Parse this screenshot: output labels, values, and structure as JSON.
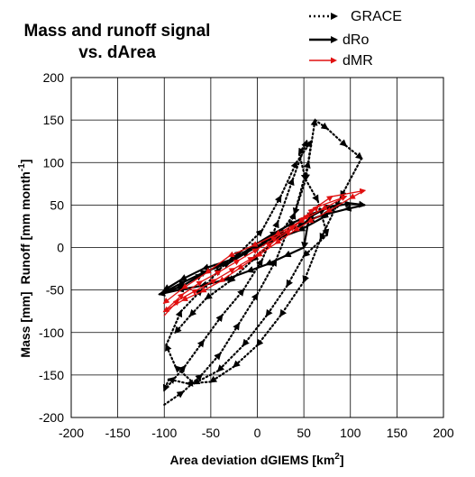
{
  "chart_data": {
    "type": "line",
    "title_lines": [
      "Mass and runoff signal",
      "vs. dArea"
    ],
    "xlabel": "Area deviation dGIEMS [km",
    "xlabel_sup": "2",
    "xlabel_end": "]",
    "ylabel_mass": "Mass [mm]",
    "ylabel_runoff": "Runoff [mm month",
    "ylabel_runoff_sup": "-1",
    "ylabel_runoff_end": "]",
    "xlim": [
      -200,
      200
    ],
    "ylim": [
      -200,
      200
    ],
    "xticks": [
      "-200",
      "-150",
      "-100",
      "-50",
      "0",
      "50",
      "100",
      "150",
      "200"
    ],
    "yticks": [
      "-200",
      "-150",
      "-100",
      "-50",
      "0",
      "50",
      "100",
      "150",
      "200"
    ],
    "grid": true,
    "legend_position": "top-right",
    "series": [
      {
        "name": "GRACE",
        "color": "#000000",
        "style": "dotted",
        "x": [
          -100,
          -80,
          -60,
          -40,
          -20,
          0,
          20,
          40,
          55,
          62,
          75,
          95,
          112,
          90,
          68,
          50,
          25,
          0,
          -25,
          -50,
          -75,
          -95,
          -100,
          -78,
          -58,
          -38,
          -15,
          5,
          22,
          38,
          53,
          45,
          52,
          65,
          75,
          50,
          32,
          10,
          -15,
          -42,
          -68,
          -88,
          -98,
          -82,
          -60,
          -40,
          -18,
          5,
          25,
          42,
          58,
          52,
          40,
          20,
          -5,
          -30,
          -55,
          -72,
          -88
        ],
        "y": [
          -185,
          -170,
          -150,
          -125,
          -90,
          -55,
          -15,
          40,
          100,
          150,
          140,
          120,
          105,
          60,
          10,
          -40,
          -80,
          -115,
          -140,
          -158,
          -160,
          -155,
          -168,
          -140,
          -110,
          -80,
          -50,
          -15,
          30,
          80,
          125,
          110,
          80,
          55,
          15,
          -10,
          -45,
          -80,
          -115,
          -145,
          -160,
          -140,
          -115,
          -75,
          -50,
          -25,
          -5,
          20,
          60,
          100,
          125,
          80,
          40,
          10,
          -15,
          -40,
          -60,
          -80,
          -100
        ]
      },
      {
        "name": "dRo",
        "color": "#000000",
        "style": "solid",
        "x": [
          -105,
          -80,
          -60,
          -40,
          -20,
          0,
          20,
          40,
          60,
          80,
          100,
          115,
          95,
          70,
          55,
          50,
          30,
          10,
          -10,
          -35,
          -60,
          -85,
          -105,
          -78,
          -55,
          -30,
          -10,
          10,
          30,
          50,
          60,
          72,
          90,
          70,
          45,
          20,
          -5,
          -30,
          -58,
          -82,
          -100
        ],
        "y": [
          -55,
          -45,
          -32,
          -20,
          -10,
          5,
          18,
          30,
          40,
          48,
          52,
          50,
          45,
          38,
          32,
          0,
          -10,
          -20,
          -28,
          -38,
          -45,
          -50,
          -55,
          -40,
          -28,
          -18,
          -5,
          8,
          18,
          28,
          38,
          45,
          52,
          35,
          20,
          10,
          -2,
          -15,
          -25,
          -38,
          -50
        ]
      },
      {
        "name": "dMR",
        "color": "#e01010",
        "style": "solid",
        "x": [
          -100,
          -85,
          -65,
          -45,
          -25,
          -5,
          15,
          35,
          50,
          60,
          80,
          115,
          100,
          75,
          55,
          40,
          20,
          0,
          -20,
          -40,
          -60,
          -80,
          -100,
          -80,
          -60,
          -40,
          -20,
          0,
          20,
          40,
          55,
          65,
          95,
          70,
          45,
          20,
          -5,
          -30,
          -55,
          -80,
          -100
        ],
        "y": [
          -80,
          -62,
          -50,
          -38,
          -25,
          -12,
          5,
          20,
          35,
          45,
          60,
          67,
          58,
          42,
          30,
          20,
          5,
          -10,
          -25,
          -40,
          -52,
          -62,
          -75,
          -55,
          -40,
          -28,
          -15,
          -2,
          12,
          25,
          38,
          48,
          60,
          45,
          30,
          15,
          2,
          -10,
          -30,
          -48,
          -65
        ]
      }
    ]
  }
}
